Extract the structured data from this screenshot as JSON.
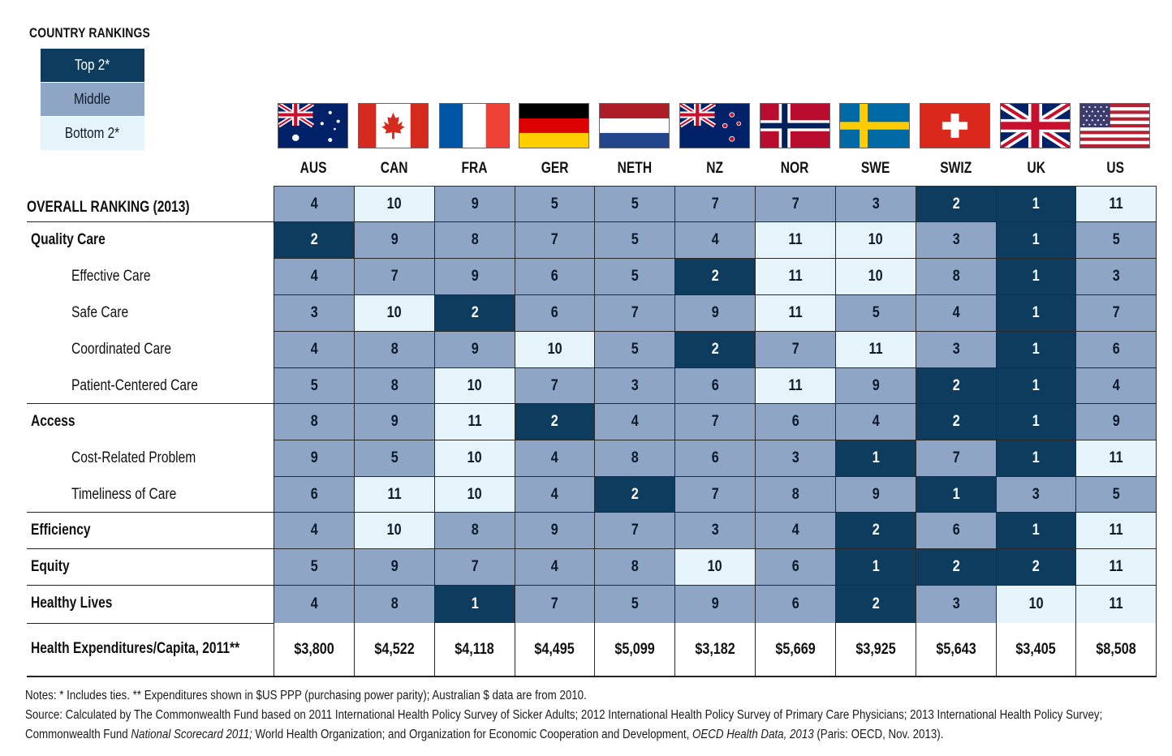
{
  "legend": {
    "title": "COUNTRY RANKINGS",
    "top": "Top 2*",
    "middle": "Middle",
    "bottom": "Bottom 2*",
    "colors": {
      "top": "#0e3c5e",
      "middle": "#8fa5c6",
      "bottom": "#e5f3fb"
    }
  },
  "chart_data": {
    "type": "table",
    "columns": [
      "AUS",
      "CAN",
      "FRA",
      "GER",
      "NETH",
      "NZ",
      "NOR",
      "SWE",
      "SWIZ",
      "UK",
      "US"
    ],
    "rows": [
      {
        "label": "OVERALL RANKING (2013)",
        "style": "bold-caps",
        "values": [
          4,
          10,
          9,
          5,
          5,
          7,
          7,
          3,
          2,
          1,
          11
        ]
      },
      {
        "label": "Quality Care",
        "style": "bold",
        "values": [
          2,
          9,
          8,
          7,
          5,
          4,
          11,
          10,
          3,
          1,
          5
        ]
      },
      {
        "label": "Effective Care",
        "style": "sub",
        "values": [
          4,
          7,
          9,
          6,
          5,
          2,
          11,
          10,
          8,
          1,
          3
        ]
      },
      {
        "label": "Safe Care",
        "style": "sub",
        "values": [
          3,
          10,
          2,
          6,
          7,
          9,
          11,
          5,
          4,
          1,
          7
        ]
      },
      {
        "label": "Coordinated Care",
        "style": "sub",
        "values": [
          4,
          8,
          9,
          10,
          5,
          2,
          7,
          11,
          3,
          1,
          6
        ]
      },
      {
        "label": "Patient-Centered Care",
        "style": "sub",
        "values": [
          5,
          8,
          10,
          7,
          3,
          6,
          11,
          9,
          2,
          1,
          4
        ]
      },
      {
        "label": "Access",
        "style": "bold",
        "values": [
          8,
          9,
          11,
          2,
          4,
          7,
          6,
          4,
          2,
          1,
          9
        ]
      },
      {
        "label": "Cost-Related Problem",
        "style": "sub",
        "values": [
          9,
          5,
          10,
          4,
          8,
          6,
          3,
          1,
          7,
          1,
          11
        ]
      },
      {
        "label": "Timeliness of Care",
        "style": "sub",
        "values": [
          6,
          11,
          10,
          4,
          2,
          7,
          8,
          9,
          1,
          3,
          5
        ]
      },
      {
        "label": "Efficiency",
        "style": "bold",
        "values": [
          4,
          10,
          8,
          9,
          7,
          3,
          4,
          2,
          6,
          1,
          11
        ]
      },
      {
        "label": "Equity",
        "style": "bold",
        "values": [
          5,
          9,
          7,
          4,
          8,
          10,
          6,
          1,
          2,
          2,
          11
        ]
      },
      {
        "label": "Healthy Lives",
        "style": "bold",
        "values": [
          4,
          8,
          1,
          7,
          5,
          9,
          6,
          2,
          3,
          10,
          11
        ]
      }
    ],
    "expenditures": {
      "label": "Health Expenditures/Capita, 2011**",
      "values": [
        "$3,800",
        "$4,522",
        "$4,118",
        "$4,495",
        "$5,099",
        "$3,182",
        "$5,669",
        "$3,925",
        "$5,643",
        "$3,405",
        "$8,508"
      ]
    },
    "cell_tiers": [
      [
        "mid",
        "bot",
        "mid",
        "mid",
        "mid",
        "mid",
        "mid",
        "mid",
        "top",
        "top",
        "bot"
      ],
      [
        "top",
        "mid",
        "mid",
        "mid",
        "mid",
        "mid",
        "bot",
        "bot",
        "mid",
        "top",
        "mid"
      ],
      [
        "mid",
        "mid",
        "mid",
        "mid",
        "mid",
        "top",
        "bot",
        "bot",
        "mid",
        "top",
        "mid"
      ],
      [
        "mid",
        "bot",
        "top",
        "mid",
        "mid",
        "mid",
        "bot",
        "mid",
        "mid",
        "top",
        "mid"
      ],
      [
        "mid",
        "mid",
        "mid",
        "bot",
        "mid",
        "top",
        "mid",
        "bot",
        "mid",
        "top",
        "mid"
      ],
      [
        "mid",
        "mid",
        "bot",
        "mid",
        "mid",
        "mid",
        "bot",
        "mid",
        "top",
        "top",
        "mid"
      ],
      [
        "mid",
        "mid",
        "bot",
        "top",
        "mid",
        "mid",
        "mid",
        "mid",
        "top",
        "top",
        "mid"
      ],
      [
        "mid",
        "mid",
        "bot",
        "mid",
        "mid",
        "mid",
        "mid",
        "top",
        "mid",
        "top",
        "bot"
      ],
      [
        "mid",
        "bot",
        "bot",
        "mid",
        "top",
        "mid",
        "mid",
        "mid",
        "top",
        "mid",
        "mid"
      ],
      [
        "mid",
        "bot",
        "mid",
        "mid",
        "mid",
        "mid",
        "mid",
        "top",
        "mid",
        "top",
        "bot"
      ],
      [
        "mid",
        "mid",
        "mid",
        "mid",
        "mid",
        "bot",
        "mid",
        "top",
        "top",
        "top",
        "bot"
      ],
      [
        "mid",
        "mid",
        "top",
        "mid",
        "mid",
        "mid",
        "mid",
        "top",
        "mid",
        "bot",
        "bot"
      ]
    ]
  },
  "flags": [
    "australia-flag-icon",
    "canada-flag-icon",
    "france-flag-icon",
    "germany-flag-icon",
    "netherlands-flag-icon",
    "new-zealand-flag-icon",
    "norway-flag-icon",
    "sweden-flag-icon",
    "switzerland-flag-icon",
    "uk-flag-icon",
    "us-flag-icon"
  ],
  "notes": {
    "line1": "Notes: * Includes ties. ** Expenditures shown in $US PPP (purchasing power parity); Australian $ data are from 2010.",
    "source_a": "Source: Calculated by The Commonwealth Fund based on 2011 International Health Policy Survey of Sicker Adults; 2012 International Health Policy Survey of Primary Care Physicians; 2013 International Health Policy Survey; Commonwealth Fund ",
    "source_b": "National Scorecard 2011;",
    "source_c": " World Health Organization; and Organization for Economic Cooperation and Development, ",
    "source_d": "OECD Health Data, 2013",
    "source_e": " (Paris: OECD, Nov. 2013)."
  }
}
